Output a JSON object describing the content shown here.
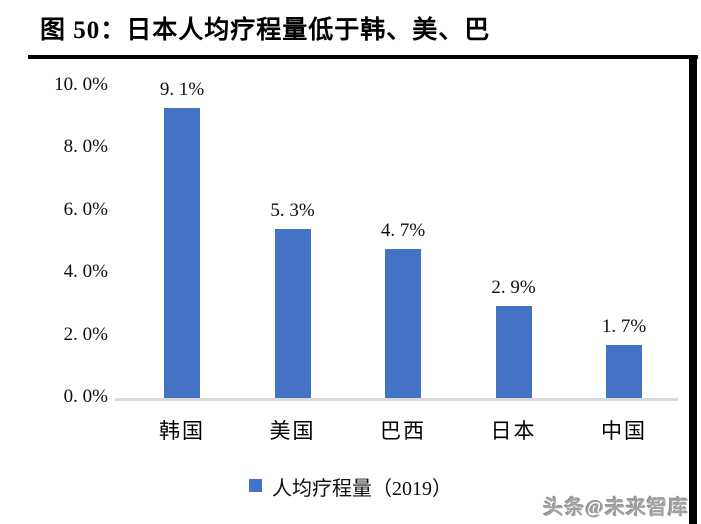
{
  "figure": {
    "title": "图 50：日本人均疗程量低于韩、美、巴",
    "watermark": "头条@未来智库"
  },
  "chart_data": {
    "type": "bar",
    "title": "图 50：日本人均疗程量低于韩、美、巴",
    "categories": [
      "韩国",
      "美国",
      "巴西",
      "日本",
      "中国"
    ],
    "values": [
      9.1,
      5.3,
      4.7,
      2.9,
      1.7
    ],
    "data_labels": [
      "9. 1%",
      "5. 3%",
      "4. 7%",
      "2. 9%",
      "1. 7%"
    ],
    "series_name": "人均疗程量（2019）",
    "y_tick_labels": [
      "10. 0%",
      "8. 0%",
      "6. 0%",
      "4. 0%",
      "2. 0%",
      "0. 0%"
    ],
    "y_tick_values": [
      10,
      8,
      6,
      4,
      2,
      0
    ],
    "ylim": [
      0,
      10
    ],
    "grid": false,
    "legend_position": "bottom",
    "bar_color": "#4472c4",
    "axis_line_color": "#d9d9d9",
    "label_color": "#0d0d0d"
  }
}
